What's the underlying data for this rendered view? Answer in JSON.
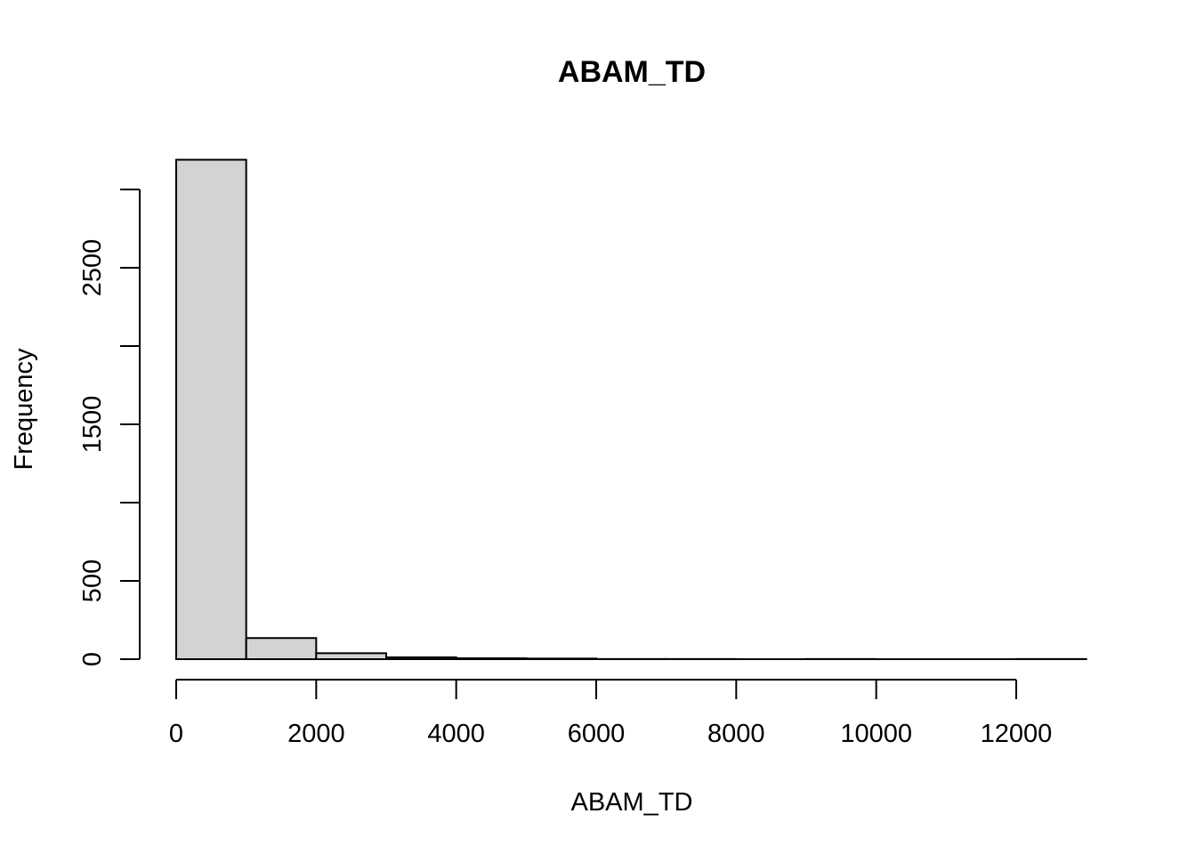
{
  "chart_data": {
    "type": "bar",
    "subtype": "histogram",
    "title": "ABAM_TD",
    "xlabel": "ABAM_TD",
    "ylabel": "Frequency",
    "bar_color": "#d3d3d3",
    "edge_color": "#000000",
    "bins": [
      {
        "x0": 0,
        "x1": 1000,
        "count": 3190
      },
      {
        "x0": 1000,
        "x1": 2000,
        "count": 135
      },
      {
        "x0": 2000,
        "x1": 3000,
        "count": 38
      },
      {
        "x0": 3000,
        "x1": 4000,
        "count": 12
      },
      {
        "x0": 4000,
        "x1": 5000,
        "count": 6
      },
      {
        "x0": 5000,
        "x1": 6000,
        "count": 4
      },
      {
        "x0": 6000,
        "x1": 7000,
        "count": 1
      },
      {
        "x0": 7000,
        "x1": 8000,
        "count": 1
      },
      {
        "x0": 8000,
        "x1": 9000,
        "count": 0
      },
      {
        "x0": 9000,
        "x1": 10000,
        "count": 1
      },
      {
        "x0": 10000,
        "x1": 11000,
        "count": 0
      },
      {
        "x0": 11000,
        "x1": 12000,
        "count": 0
      },
      {
        "x0": 12000,
        "x1": 13000,
        "count": 1
      }
    ],
    "xlim": [
      0,
      13000
    ],
    "ylim": [
      0,
      3190
    ],
    "x_ticks": [
      0,
      2000,
      4000,
      6000,
      8000,
      10000,
      12000
    ],
    "x_tick_labels": [
      "0",
      "2000",
      "4000",
      "6000",
      "8000",
      "10000",
      "12000"
    ],
    "y_ticks": [
      0,
      500,
      1000,
      1500,
      2000,
      2500,
      3000
    ],
    "y_tick_labels": [
      "0",
      "500",
      "",
      "1500",
      "",
      "2500",
      ""
    ],
    "grid": false,
    "legend": "none"
  }
}
